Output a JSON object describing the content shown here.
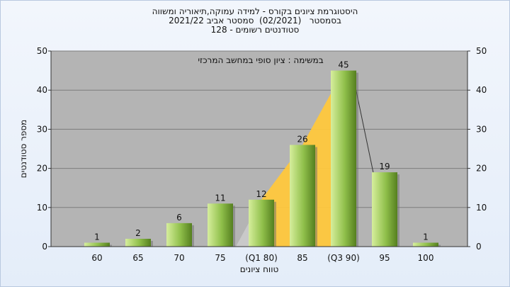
{
  "title_lines": [
    "היסטוגרמת ציונים בקורס - למידה עמוקה,תיאוריה ומשווה",
    "בסמסטר   (02/2021)  סמסטר אביב 2021/22",
    "סטודנטים רשומים - 128"
  ],
  "annotation": "במשימה : ציון סופי במחשב המרכזי",
  "chart_data": {
    "type": "bar",
    "categories": [
      "60",
      "65",
      "70",
      "75",
      "(Q1 80)",
      "85",
      "(Q3 90)",
      "95",
      "100"
    ],
    "values": [
      1,
      2,
      6,
      11,
      12,
      26,
      45,
      19,
      1
    ],
    "xlabel": "טווח ציונים",
    "ylabel": "מספר סטודנטים",
    "ylim": [
      0,
      50
    ],
    "yticks": [
      0,
      10,
      20,
      30,
      40,
      50
    ],
    "grid": true,
    "bar_color": "#8fbf4a",
    "quartile_fill_color": "#ffc83d",
    "plot_background": "#b4b4b4"
  }
}
